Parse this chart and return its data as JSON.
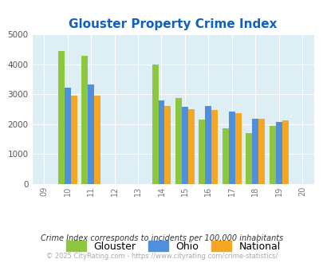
{
  "title": "Glouster Property Crime Index",
  "title_color": "#1060c0",
  "years": [
    2009,
    2010,
    2011,
    2012,
    2013,
    2014,
    2015,
    2016,
    2017,
    2018,
    2019,
    2020
  ],
  "data_years": [
    2010,
    2011,
    2014,
    2015,
    2016,
    2017,
    2018,
    2019
  ],
  "glouster": [
    4440,
    4290,
    3990,
    2870,
    2150,
    1870,
    1710,
    1930
  ],
  "ohio": [
    3220,
    3330,
    2800,
    2580,
    2600,
    2430,
    2180,
    2080
  ],
  "national": [
    2960,
    2940,
    2600,
    2490,
    2460,
    2360,
    2190,
    2120
  ],
  "color_glouster": "#8dc63f",
  "color_ohio": "#4f8fdb",
  "color_national": "#f5a623",
  "ylim": [
    0,
    5000
  ],
  "yticks": [
    0,
    1000,
    2000,
    3000,
    4000,
    5000
  ],
  "plot_bg": "#ddeef5",
  "fig_bg": "#ffffff",
  "bar_width": 0.27,
  "footnote1": "Crime Index corresponds to incidents per 100,000 inhabitants",
  "footnote2": "© 2025 CityRating.com - https://www.cityrating.com/crime-statistics/",
  "footnote1_color": "#333333",
  "footnote2_color": "#aaaaaa"
}
